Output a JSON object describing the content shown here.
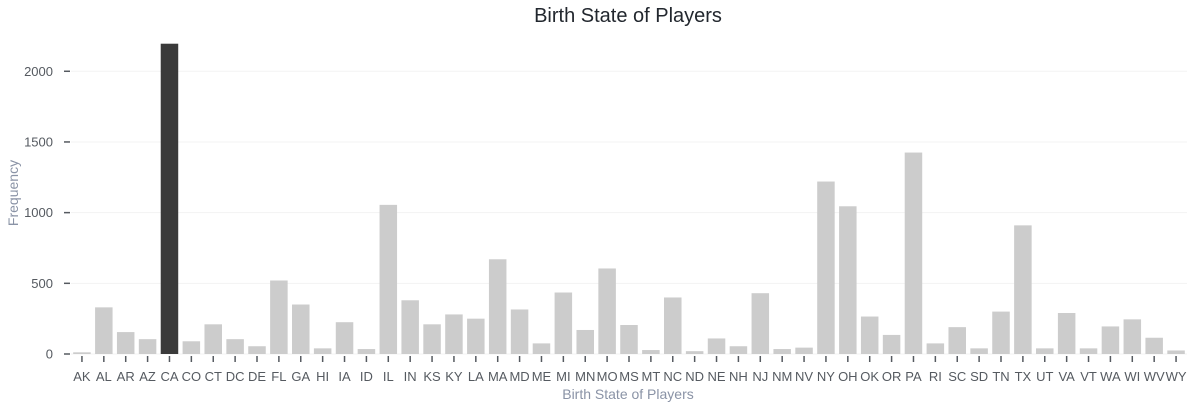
{
  "chart_data": {
    "type": "bar",
    "title": "Birth State of Players",
    "xlabel": "Birth State of Players",
    "ylabel": "Frequency",
    "categories": [
      "AK",
      "AL",
      "AR",
      "AZ",
      "CA",
      "CO",
      "CT",
      "DC",
      "DE",
      "FL",
      "GA",
      "HI",
      "IA",
      "ID",
      "IL",
      "IN",
      "KS",
      "KY",
      "LA",
      "MA",
      "MD",
      "ME",
      "MI",
      "MN",
      "MO",
      "MS",
      "MT",
      "NC",
      "ND",
      "NE",
      "NH",
      "NJ",
      "NM",
      "NV",
      "NY",
      "OH",
      "OK",
      "OR",
      "PA",
      "RI",
      "SC",
      "SD",
      "TN",
      "TX",
      "UT",
      "VA",
      "VT",
      "WA",
      "WI",
      "WV",
      "WY"
    ],
    "values": [
      12,
      330,
      155,
      105,
      2195,
      90,
      210,
      105,
      55,
      520,
      350,
      40,
      225,
      35,
      1055,
      380,
      210,
      280,
      250,
      670,
      315,
      75,
      435,
      170,
      605,
      205,
      28,
      400,
      20,
      110,
      55,
      430,
      35,
      45,
      1220,
      1045,
      265,
      135,
      1425,
      75,
      190,
      40,
      300,
      910,
      40,
      290,
      40,
      195,
      245,
      115,
      25
    ],
    "highlight": "CA",
    "colors": {
      "bar": "#cccccc",
      "highlight": "#3a3a3a"
    },
    "yticks": [
      0,
      500,
      1000,
      1500,
      2000
    ],
    "ylim": [
      0,
      2200
    ],
    "grid": true
  }
}
